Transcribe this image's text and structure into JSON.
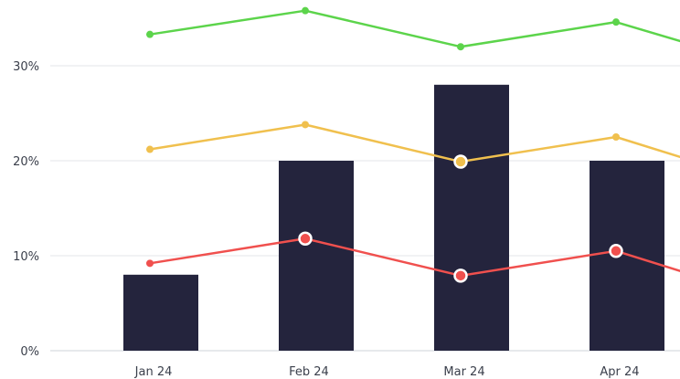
{
  "chart_data": {
    "type": "bar",
    "categories": [
      "Jan 24",
      "Feb 24",
      "Mar 24",
      "Apr 24"
    ],
    "ylim": [
      0,
      35
    ],
    "yticks": [
      {
        "value": 0,
        "label": "0%"
      },
      {
        "value": 10,
        "label": "10%"
      },
      {
        "value": 20,
        "label": "20%"
      },
      {
        "value": 30,
        "label": "30%"
      }
    ],
    "grid": true,
    "bar_series": {
      "color": "#24243d",
      "values": [
        8,
        20,
        28,
        20
      ]
    },
    "line_series": [
      {
        "color": "#5cd44b",
        "values": [
          33.3,
          35.8,
          32,
          34.6
        ],
        "exit_value": 32.6,
        "highlighted": [
          false,
          false,
          false,
          false
        ]
      },
      {
        "color": "#f0c04e",
        "values": [
          21.2,
          23.8,
          19.9,
          22.5
        ],
        "exit_value": 20.4,
        "highlighted": [
          false,
          false,
          true,
          false
        ]
      },
      {
        "color": "#f0504e",
        "values": [
          9.2,
          11.8,
          7.9,
          10.5
        ],
        "exit_value": 8.4,
        "highlighted": [
          false,
          true,
          true,
          true
        ]
      }
    ]
  }
}
